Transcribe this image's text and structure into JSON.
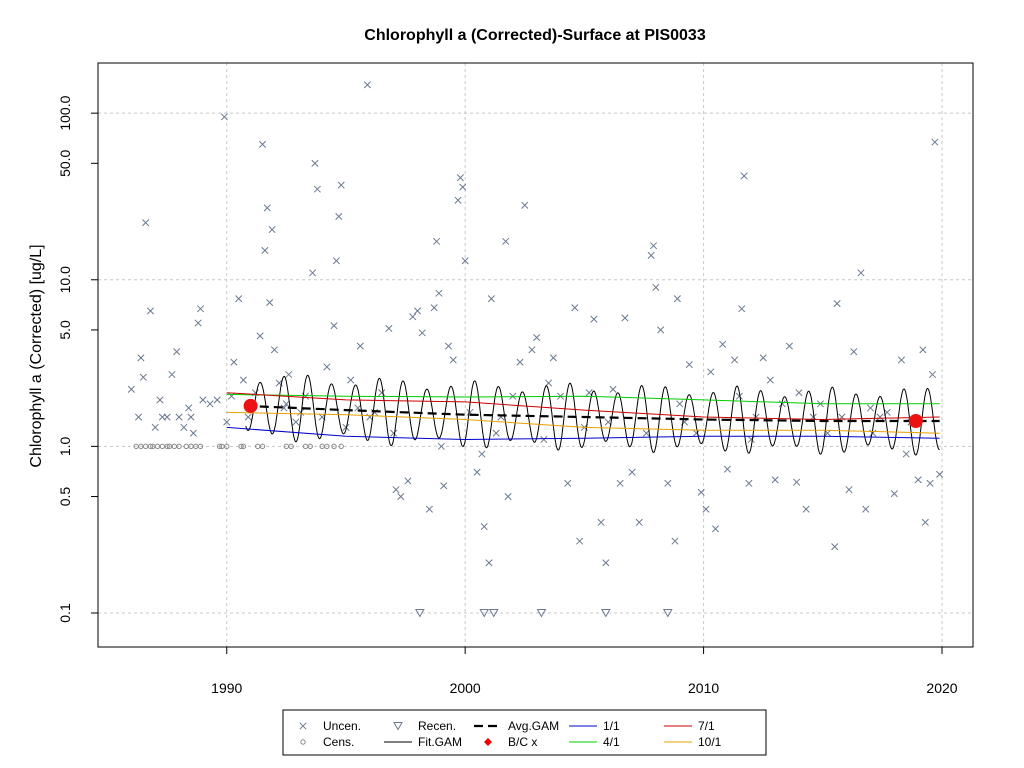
{
  "chart_data": {
    "type": "scatter",
    "title": "Chlorophyll a (Corrected)-Surface at PIS0033",
    "xlabel": "",
    "ylabel": "Chlorophyll a (Corrected) [ug/L]",
    "y_scale": "log",
    "xlim": [
      1984.6,
      2021.3
    ],
    "ylim": [
      0.0625,
      200
    ],
    "x_ticks": [
      1990,
      2000,
      2010,
      2020
    ],
    "x_tick_labels": [
      "1990",
      "2000",
      "2010",
      "2020"
    ],
    "y_ticks": [
      0.1,
      0.5,
      1.0,
      5.0,
      10.0,
      50.0,
      100.0
    ],
    "y_tick_labels": [
      "0.1",
      "0.5",
      "1.0",
      "5.0",
      "10.0",
      "50.0",
      "100.0"
    ],
    "grid": true,
    "legend_position": "bottom-center",
    "legend": [
      {
        "label": "Uncen.",
        "symbol": "x",
        "color": "#6b7a8f"
      },
      {
        "label": "Recen.",
        "symbol": "triangle-down",
        "color": "#6b7a8f"
      },
      {
        "label": "Avg.GAM",
        "symbol": "dashed-line",
        "color": "#000000"
      },
      {
        "label": "1/1",
        "symbol": "line",
        "color": "#0000cd"
      },
      {
        "label": "7/1",
        "symbol": "line",
        "color": "#cc0000"
      },
      {
        "label": "Cens.",
        "symbol": "circle",
        "color": "#888888"
      },
      {
        "label": "Fit.GAM",
        "symbol": "line",
        "color": "#000000"
      },
      {
        "label": "B/C x",
        "symbol": "diamond",
        "color": "#ee0000"
      },
      {
        "label": "4/1",
        "symbol": "line",
        "color": "#00cc00"
      },
      {
        "label": "10/1",
        "symbol": "line",
        "color": "#e6a000"
      }
    ],
    "uncensored": [
      [
        1986.0,
        2.2
      ],
      [
        1986.3,
        1.5
      ],
      [
        1986.4,
        3.4
      ],
      [
        1986.5,
        2.6
      ],
      [
        1986.6,
        22
      ],
      [
        1986.8,
        6.5
      ],
      [
        1987.0,
        1.3
      ],
      [
        1987.2,
        1.9
      ],
      [
        1987.3,
        1.5
      ],
      [
        1987.5,
        1.5
      ],
      [
        1987.7,
        2.7
      ],
      [
        1987.9,
        3.7
      ],
      [
        1988.0,
        1.5
      ],
      [
        1988.2,
        1.3
      ],
      [
        1988.4,
        1.7
      ],
      [
        1988.5,
        1.5
      ],
      [
        1988.6,
        1.2
      ],
      [
        1988.8,
        5.5
      ],
      [
        1988.9,
        6.7
      ],
      [
        1989.0,
        1.9
      ],
      [
        1989.3,
        1.8
      ],
      [
        1989.6,
        1.9
      ],
      [
        1989.9,
        95
      ],
      [
        1990.0,
        1.4
      ],
      [
        1990.2,
        2.0
      ],
      [
        1990.3,
        3.2
      ],
      [
        1990.5,
        7.7
      ],
      [
        1990.7,
        2.5
      ],
      [
        1990.9,
        1.5
      ],
      [
        1991.2,
        2.1
      ],
      [
        1991.4,
        4.6
      ],
      [
        1991.5,
        65
      ],
      [
        1991.6,
        15
      ],
      [
        1991.7,
        27
      ],
      [
        1991.8,
        7.3
      ],
      [
        1991.9,
        20
      ],
      [
        1992.0,
        3.8
      ],
      [
        1992.2,
        2.4
      ],
      [
        1992.4,
        1.7
      ],
      [
        1992.6,
        2.7
      ],
      [
        1992.9,
        1.4
      ],
      [
        1993.1,
        1.6
      ],
      [
        1993.3,
        2.0
      ],
      [
        1993.6,
        11
      ],
      [
        1993.7,
        50
      ],
      [
        1993.8,
        35
      ],
      [
        1994.0,
        1.5
      ],
      [
        1994.2,
        3.0
      ],
      [
        1994.5,
        5.3
      ],
      [
        1994.6,
        13
      ],
      [
        1994.7,
        24
      ],
      [
        1994.8,
        37
      ],
      [
        1995.0,
        1.3
      ],
      [
        1995.2,
        2.5
      ],
      [
        1995.5,
        1.7
      ],
      [
        1995.6,
        4.0
      ],
      [
        1995.9,
        148
      ],
      [
        1996.2,
        1.6
      ],
      [
        1996.5,
        2.1
      ],
      [
        1996.8,
        5.1
      ],
      [
        1997.1,
        0.55
      ],
      [
        1997.3,
        0.5
      ],
      [
        1997.6,
        0.62
      ],
      [
        1997.8,
        6.0
      ],
      [
        1998.0,
        6.5
      ],
      [
        1998.2,
        4.8
      ],
      [
        1998.5,
        0.42
      ],
      [
        1998.7,
        6.8
      ],
      [
        1998.8,
        17
      ],
      [
        1998.9,
        8.3
      ],
      [
        1999.1,
        0.58
      ],
      [
        1999.3,
        4.0
      ],
      [
        1999.5,
        3.3
      ],
      [
        1999.7,
        30
      ],
      [
        1999.8,
        41
      ],
      [
        1999.9,
        36
      ],
      [
        2000.0,
        13
      ],
      [
        2000.2,
        1.6
      ],
      [
        2000.5,
        0.7
      ],
      [
        2000.7,
        0.9
      ],
      [
        2000.8,
        0.33
      ],
      [
        2001.0,
        0.2
      ],
      [
        2001.1,
        7.7
      ],
      [
        2001.3,
        1.2
      ],
      [
        2001.5,
        1.5
      ],
      [
        2001.7,
        17
      ],
      [
        2001.8,
        0.5
      ],
      [
        2002.0,
        2.0
      ],
      [
        2002.3,
        3.2
      ],
      [
        2002.5,
        28
      ],
      [
        2002.8,
        3.8
      ],
      [
        2003.0,
        4.5
      ],
      [
        2003.3,
        1.1
      ],
      [
        2003.7,
        3.4
      ],
      [
        2004.0,
        2.0
      ],
      [
        2004.3,
        0.6
      ],
      [
        2004.6,
        6.8
      ],
      [
        2004.8,
        0.27
      ],
      [
        2005.0,
        1.3
      ],
      [
        2005.2,
        2.1
      ],
      [
        2005.4,
        5.8
      ],
      [
        2005.7,
        0.35
      ],
      [
        2005.9,
        0.2
      ],
      [
        2006.2,
        2.2
      ],
      [
        2006.5,
        0.6
      ],
      [
        2006.7,
        5.9
      ],
      [
        2007.0,
        0.7
      ],
      [
        2007.3,
        0.35
      ],
      [
        2007.6,
        1.2
      ],
      [
        2007.8,
        14
      ],
      [
        2007.9,
        16
      ],
      [
        2008.0,
        9.0
      ],
      [
        2008.2,
        5.0
      ],
      [
        2008.5,
        0.6
      ],
      [
        2008.8,
        0.27
      ],
      [
        2008.9,
        7.7
      ],
      [
        2009.2,
        1.4
      ],
      [
        2009.4,
        3.1
      ],
      [
        2009.7,
        1.2
      ],
      [
        2009.9,
        0.53
      ],
      [
        2010.1,
        0.42
      ],
      [
        2010.3,
        2.8
      ],
      [
        2010.5,
        0.32
      ],
      [
        2010.8,
        4.1
      ],
      [
        2011.0,
        0.73
      ],
      [
        2011.3,
        3.3
      ],
      [
        2011.5,
        2.0
      ],
      [
        2011.6,
        6.7
      ],
      [
        2011.7,
        42
      ],
      [
        2011.9,
        0.6
      ],
      [
        2012.2,
        1.5
      ],
      [
        2012.5,
        3.4
      ],
      [
        2012.8,
        2.5
      ],
      [
        2013.0,
        0.63
      ],
      [
        2013.3,
        1.8
      ],
      [
        2013.6,
        4.0
      ],
      [
        2013.9,
        0.61
      ],
      [
        2014.3,
        0.42
      ],
      [
        2014.6,
        1.5
      ],
      [
        2014.9,
        1.8
      ],
      [
        2015.2,
        1.2
      ],
      [
        2015.5,
        0.25
      ],
      [
        2015.6,
        7.2
      ],
      [
        2015.8,
        1.5
      ],
      [
        2016.1,
        0.55
      ],
      [
        2016.3,
        3.7
      ],
      [
        2016.6,
        11
      ],
      [
        2016.8,
        0.42
      ],
      [
        2017.1,
        1.2
      ],
      [
        2017.4,
        1.5
      ],
      [
        2017.7,
        1.6
      ],
      [
        2018.0,
        0.52
      ],
      [
        2018.3,
        3.3
      ],
      [
        2018.7,
        1.4
      ],
      [
        2019.0,
        0.63
      ],
      [
        2019.2,
        3.8
      ],
      [
        2019.3,
        0.35
      ],
      [
        2019.6,
        2.7
      ],
      [
        2019.7,
        67
      ],
      [
        2019.9,
        0.68
      ],
      [
        2019.5,
        0.6
      ],
      [
        2018.5,
        0.9
      ],
      [
        2017.0,
        1.7
      ],
      [
        2014.0,
        2.1
      ],
      [
        2012.0,
        1.1
      ],
      [
        2009.0,
        1.8
      ],
      [
        2006.0,
        1.4
      ],
      [
        2003.5,
        2.4
      ],
      [
        1999.0,
        1.0
      ],
      [
        1996.0,
        1.5
      ],
      [
        1992.5,
        1.8
      ],
      [
        1997.0,
        1.2
      ]
    ],
    "censored": [
      [
        1986.2,
        1.0
      ],
      [
        1986.4,
        1.0
      ],
      [
        1986.6,
        1.0
      ],
      [
        1986.8,
        1.0
      ],
      [
        1986.9,
        1.0
      ],
      [
        1987.1,
        1.0
      ],
      [
        1987.3,
        1.0
      ],
      [
        1987.5,
        1.0
      ],
      [
        1987.6,
        1.0
      ],
      [
        1987.8,
        1.0
      ],
      [
        1988.0,
        1.0
      ],
      [
        1988.3,
        1.0
      ],
      [
        1988.5,
        1.0
      ],
      [
        1988.7,
        1.0
      ],
      [
        1988.9,
        1.0
      ],
      [
        1989.7,
        1.0
      ],
      [
        1989.8,
        1.0
      ],
      [
        1990.0,
        1.0
      ],
      [
        1990.6,
        1.0
      ],
      [
        1990.7,
        1.0
      ],
      [
        1991.3,
        1.0
      ],
      [
        1991.5,
        1.0
      ],
      [
        1992.5,
        1.0
      ],
      [
        1992.7,
        1.0
      ],
      [
        1993.3,
        1.0
      ],
      [
        1993.5,
        1.0
      ],
      [
        1994.0,
        1.0
      ],
      [
        1994.2,
        1.0
      ],
      [
        1994.5,
        1.0
      ],
      [
        1994.8,
        1.0
      ]
    ],
    "recensored": [
      [
        1998.1,
        0.1
      ],
      [
        2000.8,
        0.1
      ],
      [
        2001.2,
        0.1
      ],
      [
        2003.2,
        0.1
      ],
      [
        2005.9,
        0.1
      ],
      [
        2008.5,
        0.1
      ]
    ],
    "fit_gam_description": "seasonal oscillation, amplitude ~0.85 to ~3.0, period 1 year, 1990.8–2019.9",
    "fit_gam_range": [
      1990.8,
      2019.9
    ],
    "avg_gam": {
      "x": [
        1990.8,
        1995,
        2000,
        2005,
        2010,
        2015,
        2019.9
      ],
      "y": [
        1.75,
        1.65,
        1.55,
        1.5,
        1.45,
        1.42,
        1.42
      ]
    },
    "line_1_1": {
      "x": [
        1990,
        1995,
        2000,
        2005,
        2010,
        2015,
        2019.9
      ],
      "y": [
        1.3,
        1.15,
        1.1,
        1.12,
        1.15,
        1.15,
        1.12
      ]
    },
    "line_4_1": {
      "x": [
        1990,
        1995,
        2000,
        2005,
        2010,
        2015,
        2019.9
      ],
      "y": [
        2.05,
        2.0,
        1.98,
        2.0,
        1.9,
        1.8,
        1.8
      ]
    },
    "line_7_1": {
      "x": [
        1990,
        1995,
        2000,
        2005,
        2010,
        2015,
        2019.9
      ],
      "y": [
        2.1,
        1.9,
        1.85,
        1.65,
        1.5,
        1.45,
        1.5
      ]
    },
    "line_10_1": {
      "x": [
        1990,
        1995,
        2000,
        2005,
        2010,
        2015,
        2019.9
      ],
      "y": [
        1.6,
        1.55,
        1.45,
        1.3,
        1.25,
        1.25,
        1.2
      ]
    },
    "bc_points": [
      [
        1991.0,
        1.75
      ],
      [
        2018.9,
        1.42
      ]
    ],
    "colors": {
      "points": "#6b7a8f",
      "censored": "#888888",
      "one": "#0000cd",
      "four": "#00cc00",
      "seven": "#cc0000",
      "ten": "#e6a000",
      "bc": "#ee1111",
      "grid": "#c8c8c8"
    }
  }
}
